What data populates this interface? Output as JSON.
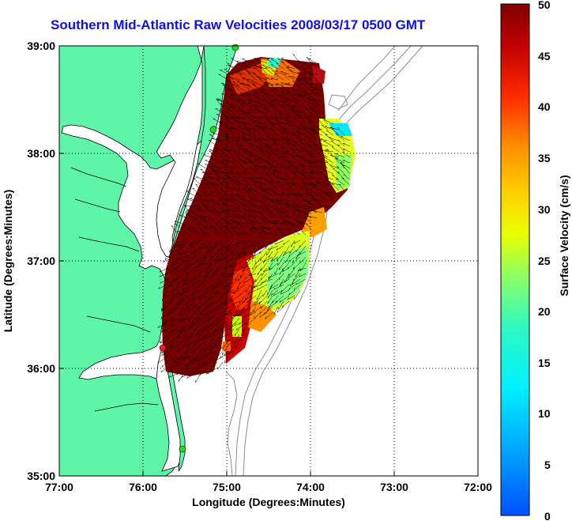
{
  "title": "Southern Mid-Atlantic Raw Velocities 2008/03/17 0500 GMT",
  "axes": {
    "xlabel": "Longitude (Degrees:Minutes)",
    "ylabel": "Latitude (Degrees:Minutes)",
    "xticks": [
      "77:00",
      "76:00",
      "75:00",
      "74:00",
      "73:00",
      "72:00"
    ],
    "yticks": [
      "39:00",
      "38:00",
      "37:00",
      "36:00",
      "35:00"
    ],
    "xlim_deg_west": [
      77,
      72
    ],
    "ylim_deg_north": [
      35,
      39
    ],
    "grid": "dotted"
  },
  "colorbar": {
    "label": "Surface Velocity (cm/s)",
    "ticks": [
      "50",
      "45",
      "40",
      "35",
      "30",
      "25",
      "20",
      "15",
      "10",
      "5",
      "0"
    ],
    "range_cm_s": [
      0,
      50
    ],
    "colormap": "jet"
  },
  "colors": {
    "land": "#5ff5a8",
    "water": "#ffffff",
    "title": "#1010e0",
    "bathymetry": "#8c8c8c",
    "station_marker": "#22dd22",
    "station_marker_red": "#ee2222"
  }
}
